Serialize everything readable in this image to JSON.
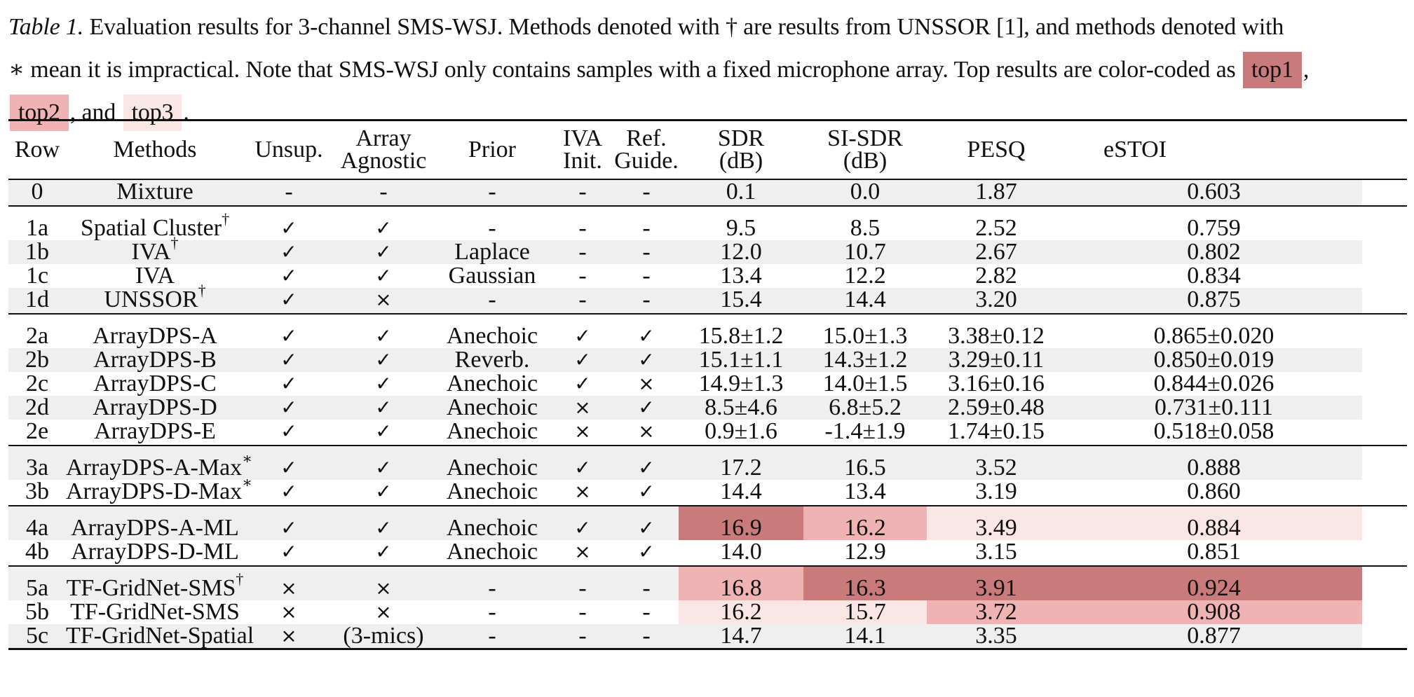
{
  "caption": {
    "label": "Table 1.",
    "line1": " Evaluation results for 3-channel SMS-WSJ. Methods denoted with † are results from UNSSOR [1], and methods denoted with",
    "line2": "∗ mean it is impractical. Note that SMS-WSJ only contains samples with a fixed microphone array. Top results are color-coded as",
    "top1": "top1",
    "comma1": ",",
    "top2": "top2",
    "and": ", and",
    "top3": "top3",
    "period": "."
  },
  "colors": {
    "top1": "#c97a7a",
    "top2": "#f0b3b3",
    "top3": "#fbe6e6",
    "stripe": "#efefef"
  },
  "headers": {
    "row": "Row",
    "methods": "Methods",
    "unsup": "Unsup.",
    "array_1": "Array",
    "array_2": "Agnostic",
    "prior": "Prior",
    "iva_1": "IVA",
    "iva_2": "Init.",
    "ref_1": "Ref.",
    "ref_2": "Guide.",
    "sdr_1": "SDR",
    "sdr_2": "(dB)",
    "sisdr_1": "SI-SDR",
    "sisdr_2": "(dB)",
    "pesq": "PESQ",
    "estoi": "eSTOI"
  },
  "rows": [
    {
      "row": "0",
      "method": "Mixture",
      "sup": "",
      "unsup": "-",
      "array": "-",
      "prior": "-",
      "iva": "-",
      "ref": "-",
      "sdr": "0.1",
      "sisdr": "0.0",
      "pesq": "1.87",
      "estoi": "0.603"
    },
    {
      "row": "1a",
      "method": "Spatial Cluster",
      "sup": "†",
      "unsup": "✓",
      "array": "✓",
      "prior": "-",
      "iva": "-",
      "ref": "-",
      "sdr": "9.5",
      "sisdr": "8.5",
      "pesq": "2.52",
      "estoi": "0.759"
    },
    {
      "row": "1b",
      "method": "IVA",
      "sup": "†",
      "unsup": "✓",
      "array": "✓",
      "prior": "Laplace",
      "iva": "-",
      "ref": "-",
      "sdr": "12.0",
      "sisdr": "10.7",
      "pesq": "2.67",
      "estoi": "0.802"
    },
    {
      "row": "1c",
      "method": "IVA",
      "sup": "",
      "unsup": "✓",
      "array": "✓",
      "prior": "Gaussian",
      "iva": "-",
      "ref": "-",
      "sdr": "13.4",
      "sisdr": "12.2",
      "pesq": "2.82",
      "estoi": "0.834"
    },
    {
      "row": "1d",
      "method": "UNSSOR",
      "sup": "†",
      "unsup": "✓",
      "array": "×",
      "prior": "-",
      "iva": "-",
      "ref": "-",
      "sdr": "15.4",
      "sisdr": "14.4",
      "pesq": "3.20",
      "estoi": "0.875"
    },
    {
      "row": "2a",
      "method": "ArrayDPS-A",
      "sup": "",
      "unsup": "✓",
      "array": "✓",
      "prior": "Anechoic",
      "iva": "✓",
      "ref": "✓",
      "sdr": "15.8±1.2",
      "sisdr": "15.0±1.3",
      "pesq": "3.38±0.12",
      "estoi": "0.865±0.020"
    },
    {
      "row": "2b",
      "method": "ArrayDPS-B",
      "sup": "",
      "unsup": "✓",
      "array": "✓",
      "prior": "Reverb.",
      "iva": "✓",
      "ref": "✓",
      "sdr": "15.1±1.1",
      "sisdr": "14.3±1.2",
      "pesq": "3.29±0.11",
      "estoi": "0.850±0.019"
    },
    {
      "row": "2c",
      "method": "ArrayDPS-C",
      "sup": "",
      "unsup": "✓",
      "array": "✓",
      "prior": "Anechoic",
      "iva": "✓",
      "ref": "×",
      "sdr": "14.9±1.3",
      "sisdr": "14.0±1.5",
      "pesq": "3.16±0.16",
      "estoi": "0.844±0.026"
    },
    {
      "row": "2d",
      "method": "ArrayDPS-D",
      "sup": "",
      "unsup": "✓",
      "array": "✓",
      "prior": "Anechoic",
      "iva": "×",
      "ref": "✓",
      "sdr": "8.5±4.6",
      "sisdr": "6.8±5.2",
      "pesq": "2.59±0.48",
      "estoi": "0.731±0.111"
    },
    {
      "row": "2e",
      "method": "ArrayDPS-E",
      "sup": "",
      "unsup": "✓",
      "array": "✓",
      "prior": "Anechoic",
      "iva": "×",
      "ref": "×",
      "sdr": "0.9±1.6",
      "sisdr": "-1.4±1.9",
      "pesq": "1.74±0.15",
      "estoi": "0.518±0.058"
    },
    {
      "row": "3a",
      "method": "ArrayDPS-A-Max",
      "sup": "∗",
      "unsup": "✓",
      "array": "✓",
      "prior": "Anechoic",
      "iva": "✓",
      "ref": "✓",
      "sdr": "17.2",
      "sisdr": "16.5",
      "pesq": "3.52",
      "estoi": "0.888"
    },
    {
      "row": "3b",
      "method": "ArrayDPS-D-Max",
      "sup": "∗",
      "unsup": "✓",
      "array": "✓",
      "prior": "Anechoic",
      "iva": "×",
      "ref": "✓",
      "sdr": "14.4",
      "sisdr": "13.4",
      "pesq": "3.19",
      "estoi": "0.860"
    },
    {
      "row": "4a",
      "method": "ArrayDPS-A-ML",
      "sup": "",
      "unsup": "✓",
      "array": "✓",
      "prior": "Anechoic",
      "iva": "✓",
      "ref": "✓",
      "sdr": "16.9",
      "sisdr": "16.2",
      "pesq": "3.49",
      "estoi": "0.884"
    },
    {
      "row": "4b",
      "method": "ArrayDPS-D-ML",
      "sup": "",
      "unsup": "✓",
      "array": "✓",
      "prior": "Anechoic",
      "iva": "×",
      "ref": "✓",
      "sdr": "14.0",
      "sisdr": "12.9",
      "pesq": "3.15",
      "estoi": "0.851"
    },
    {
      "row": "5a",
      "method": "TF-GridNet-SMS",
      "sup": "†",
      "unsup": "×",
      "array": "×",
      "prior": "-",
      "iva": "-",
      "ref": "-",
      "sdr": "16.8",
      "sisdr": "16.3",
      "pesq": "3.91",
      "estoi": "0.924"
    },
    {
      "row": "5b",
      "method": "TF-GridNet-SMS",
      "sup": "",
      "unsup": "×",
      "array": "×",
      "prior": "-",
      "iva": "-",
      "ref": "-",
      "sdr": "16.2",
      "sisdr": "15.7",
      "pesq": "3.72",
      "estoi": "0.908"
    },
    {
      "row": "5c",
      "method": "TF-GridNet-Spatial",
      "sup": "",
      "unsup": "×",
      "array": "(3-mics)",
      "prior": "-",
      "iva": "-",
      "ref": "-",
      "sdr": "14.7",
      "sisdr": "14.1",
      "pesq": "3.35",
      "estoi": "0.877"
    }
  ],
  "highlights": [
    {
      "row": "4a",
      "col": "sdr",
      "rank": "top1"
    },
    {
      "row": "4a",
      "col": "sisdr",
      "rank": "top2"
    },
    {
      "row": "4a",
      "col": "pesq",
      "rank": "top3"
    },
    {
      "row": "4a",
      "col": "estoi",
      "rank": "top3"
    },
    {
      "row": "5a",
      "col": "sdr",
      "rank": "top2"
    },
    {
      "row": "5a",
      "col": "sisdr",
      "rank": "top1"
    },
    {
      "row": "5a",
      "col": "pesq",
      "rank": "top1"
    },
    {
      "row": "5a",
      "col": "estoi",
      "rank": "top1"
    },
    {
      "row": "5b",
      "col": "sdr",
      "rank": "top3"
    },
    {
      "row": "5b",
      "col": "sisdr",
      "rank": "top3"
    },
    {
      "row": "5b",
      "col": "pesq",
      "rank": "top2"
    },
    {
      "row": "5b",
      "col": "estoi",
      "rank": "top2"
    }
  ]
}
